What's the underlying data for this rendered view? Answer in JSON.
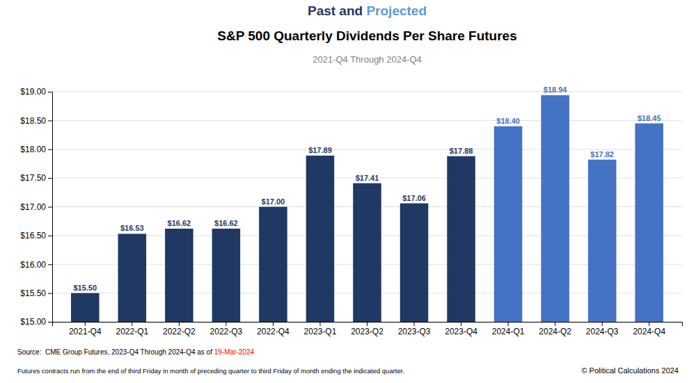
{
  "chart_data": {
    "type": "bar",
    "title": [
      [
        {
          "text": "Past and ",
          "color": "#1F3864"
        },
        {
          "text": "Projected",
          "color": "#5B9BD5"
        }
      ],
      "S&P 500 Quarterly Dividends Per Share Futures"
    ],
    "subtitle": "2021-Q4 Through 2024-Q4",
    "categories": [
      "2021-Q4",
      "2022-Q1",
      "2022-Q2",
      "2022-Q3",
      "2022-Q4",
      "2023-Q1",
      "2023-Q2",
      "2023-Q3",
      "2023-Q4",
      "2024-Q1",
      "2024-Q2",
      "2024-Q3",
      "2024-Q4"
    ],
    "values": [
      15.5,
      16.53,
      16.62,
      16.62,
      17.0,
      17.89,
      17.41,
      17.06,
      17.88,
      18.4,
      18.94,
      17.82,
      18.45
    ],
    "value_labels": [
      "$15.50",
      "$16.53",
      "$16.62",
      "$16.62",
      "$17.00",
      "$17.89",
      "$17.41",
      "$17.06",
      "$17.88",
      "$18.40",
      "$18.94",
      "$17.82",
      "$18.45"
    ],
    "colors": [
      "#1F3864",
      "#1F3864",
      "#1F3864",
      "#1F3864",
      "#1F3864",
      "#1F3864",
      "#1F3864",
      "#1F3864",
      "#1F3864",
      "#4472C4",
      "#4472C4",
      "#4472C4",
      "#4472C4"
    ],
    "data_labels": true,
    "ylim": [
      15.0,
      19.0
    ],
    "yticks": [
      {
        "value": 15.0,
        "label": "$15.00"
      },
      {
        "value": 15.5,
        "label": "$15.50"
      },
      {
        "value": 16.0,
        "label": "$16.00"
      },
      {
        "value": 16.5,
        "label": "$16.50"
      },
      {
        "value": 17.0,
        "label": "$17.00"
      },
      {
        "value": 17.5,
        "label": "$17.50"
      },
      {
        "value": 18.0,
        "label": "$18.00"
      },
      {
        "value": 18.5,
        "label": "$18.50"
      },
      {
        "value": 19.0,
        "label": "$19.00"
      }
    ],
    "grid": true,
    "source": [
      {
        "text": "Source:  CME Group Futures, 2023-Q4 Through 2024-Q4 as of "
      },
      {
        "text": "19-Mar-2024",
        "color": "#FF0000"
      }
    ],
    "footnote": "Futures contracts run from the end of third Friday in month of preceding quarter to third Friday of month ending the indicated quarter.",
    "copyright": "© Political Calculations 2024"
  }
}
